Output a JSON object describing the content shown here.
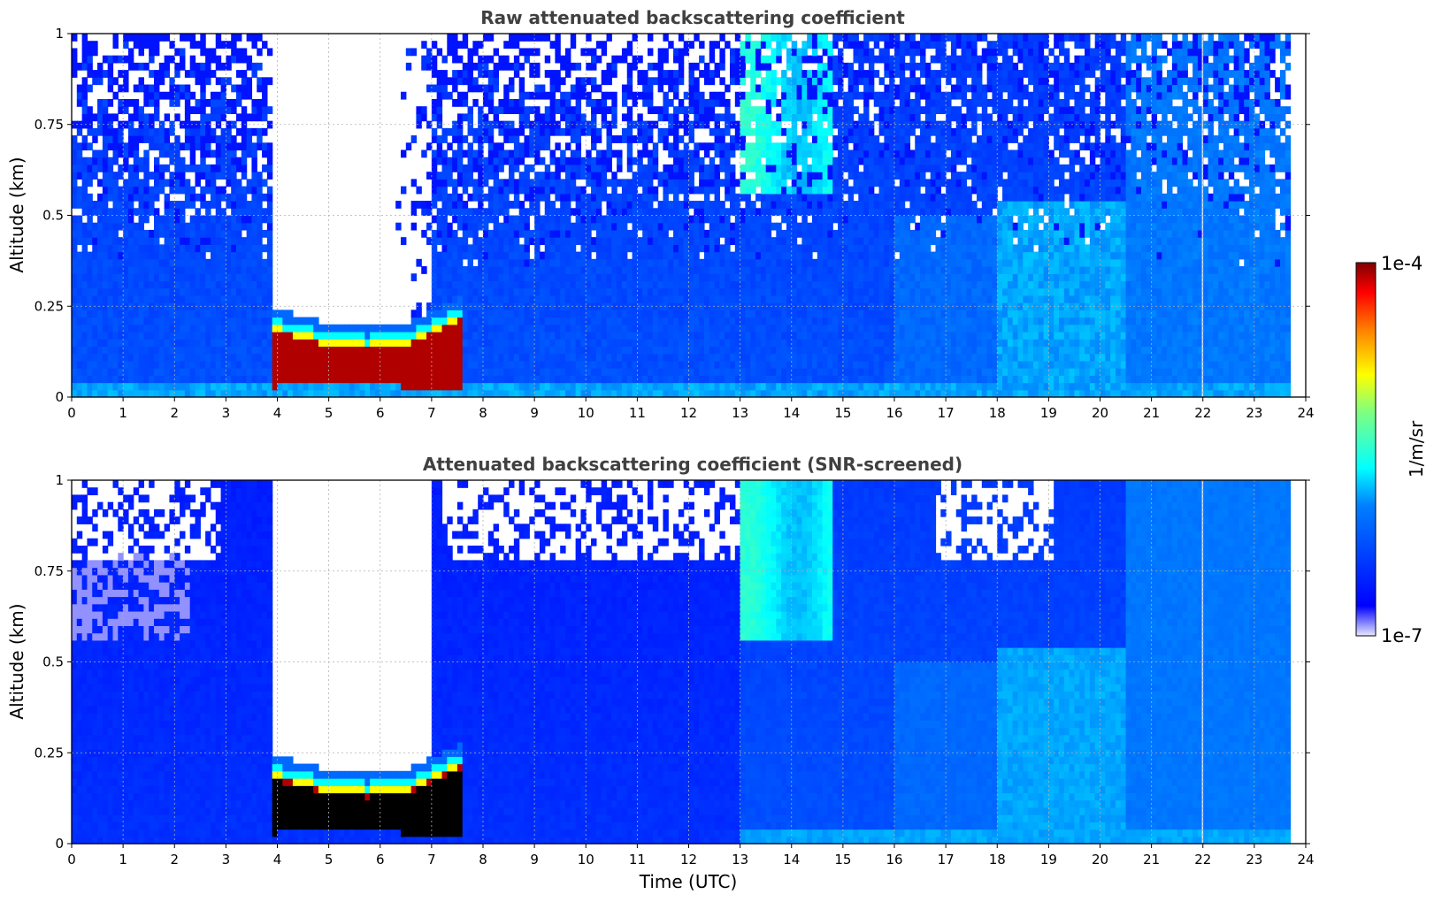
{
  "chart_data": [
    {
      "type": "heatmap",
      "title": "Raw attenuated backscattering coefficient",
      "xlabel": "",
      "ylabel": "Altitude (km)",
      "xlim": [
        0,
        24
      ],
      "ylim": [
        0,
        1
      ],
      "x_ticks": [
        "0",
        "1",
        "2",
        "3",
        "4",
        "5",
        "6",
        "7",
        "8",
        "9",
        "10",
        "11",
        "12",
        "13",
        "14",
        "15",
        "16",
        "17",
        "18",
        "19",
        "20",
        "21",
        "22",
        "23",
        "24"
      ],
      "y_ticks": [
        "0",
        "0.25",
        "0.5",
        "0.75",
        "1"
      ],
      "grid": true,
      "variant": "raw"
    },
    {
      "type": "heatmap",
      "title": "Attenuated backscattering coefficient (SNR-screened)",
      "xlabel": "Time (UTC)",
      "ylabel": "Altitude (km)",
      "xlim": [
        0,
        24
      ],
      "ylim": [
        0,
        1
      ],
      "x_ticks": [
        "0",
        "1",
        "2",
        "3",
        "4",
        "5",
        "6",
        "7",
        "8",
        "9",
        "10",
        "11",
        "12",
        "13",
        "14",
        "15",
        "16",
        "17",
        "18",
        "19",
        "20",
        "21",
        "22",
        "23",
        "24"
      ],
      "y_ticks": [
        "0",
        "0.25",
        "0.5",
        "0.75",
        "1"
      ],
      "grid": true,
      "variant": "screened"
    }
  ],
  "colorbar": {
    "label": "1/m/sr",
    "min_label": "1e-7",
    "max_label": "1e-4",
    "scale": "log",
    "colormap": "jet"
  }
}
